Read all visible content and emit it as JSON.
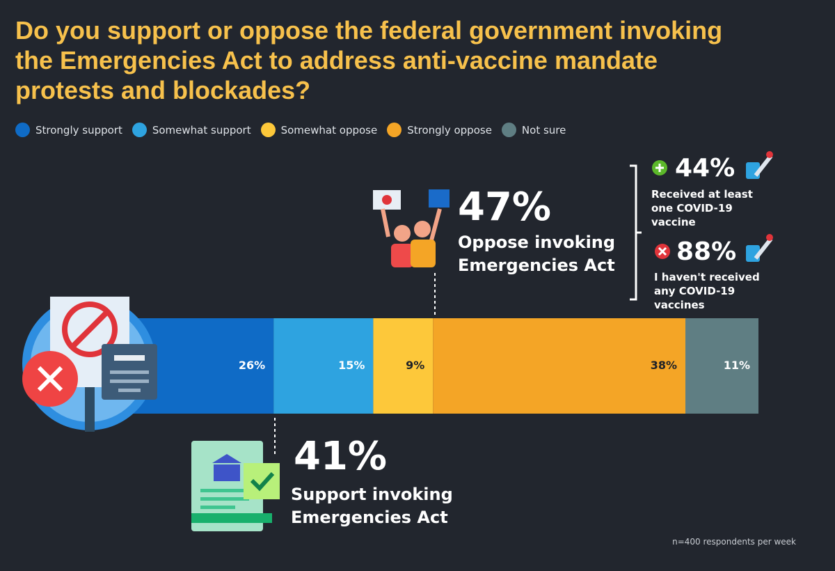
{
  "chart_data": {
    "type": "stacked-bar",
    "title": "Do you support or oppose the federal government invoking the Emergencies Act to address anti-vaccine mandate protests and blockades?",
    "series": [
      {
        "name": "Strongly support",
        "color": "#0f6bc6",
        "values": [
          26
        ],
        "value_labels": [
          "26%"
        ]
      },
      {
        "name": "Somewhat support",
        "color": "#2ea3e0",
        "values": [
          15
        ],
        "value_labels": [
          "15%"
        ]
      },
      {
        "name": "Somewhat oppose",
        "color": "#fdc83a",
        "values": [
          9
        ],
        "value_labels": [
          "9%"
        ]
      },
      {
        "name": "Strongly oppose",
        "color": "#f4a526",
        "values": [
          38
        ],
        "value_labels": [
          "38%"
        ]
      },
      {
        "name": "Not sure",
        "color": "#5f7e83",
        "values": [
          11
        ],
        "value_labels": [
          "11%"
        ]
      }
    ],
    "annotations": {
      "oppose_pct": "47%",
      "oppose_text": "Oppose invoking Emergencies Act",
      "vaccinated_pct": "44%",
      "vaccinated_text": "Received at least one COVID-19 vaccine",
      "unvaccinated_pct": "88%",
      "unvaccinated_text": "I haven't received any COVID-19 vaccines",
      "support_pct": "41%",
      "support_text": "Support invoking Emergencies Act"
    },
    "note": "n=400 respondents per week"
  }
}
